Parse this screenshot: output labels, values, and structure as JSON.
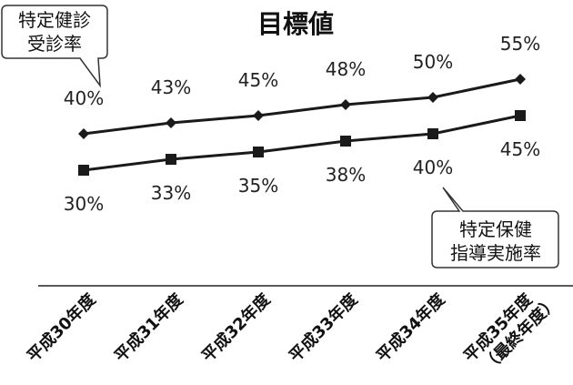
{
  "chart_data": {
    "type": "line",
    "title": "目標値",
    "categories": [
      "平成30年度",
      "平成31年度",
      "平成32年度",
      "平成33年度",
      "平成34年度",
      "平成35年度"
    ],
    "category_sublabels": [
      "",
      "",
      "",
      "",
      "",
      "（最終年度）"
    ],
    "series": [
      {
        "name": "特定健診受診率",
        "name_lines": [
          "特定健診",
          "受診率"
        ],
        "marker": "diamond",
        "values": [
          40,
          43,
          45,
          48,
          50,
          55
        ],
        "labels": [
          "40%",
          "43%",
          "45%",
          "48%",
          "50%",
          "55%"
        ]
      },
      {
        "name": "特定保健指導実施率",
        "name_lines": [
          "特定保健",
          "指導実施率"
        ],
        "marker": "square",
        "values": [
          30,
          33,
          35,
          38,
          40,
          45
        ],
        "labels": [
          "30%",
          "33%",
          "35%",
          "38%",
          "40%",
          "45%"
        ]
      }
    ],
    "ylim": [
      20,
      65
    ],
    "grid": false,
    "xlabel": "",
    "ylabel": ""
  },
  "colors": {
    "line": "#1a1a1a",
    "text": "#111111"
  }
}
